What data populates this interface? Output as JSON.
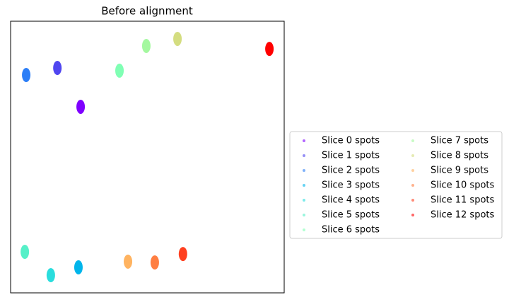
{
  "chart_data": {
    "type": "scatter",
    "title": "Before alignment",
    "xlim": [
      0,
      100
    ],
    "ylim": [
      0,
      100
    ],
    "series": [
      {
        "name": "Slice 0 spots",
        "color": "#7f00ff",
        "x": [
          25.6
        ],
        "values": [
          68.5
        ]
      },
      {
        "name": "Slice 1 spots",
        "color": "#5046f0",
        "x": [
          17.1
        ],
        "values": [
          82.8
        ]
      },
      {
        "name": "Slice 2 spots",
        "color": "#2c7ef7",
        "x": [
          5.7
        ],
        "values": [
          80.2
        ]
      },
      {
        "name": "Slice 3 spots",
        "color": "#00b5eb",
        "x": [
          24.8
        ],
        "values": [
          9.4
        ]
      },
      {
        "name": "Slice 4 spots",
        "color": "#2adddd",
        "x": [
          14.7
        ],
        "values": [
          6.5
        ]
      },
      {
        "name": "Slice 5 spots",
        "color": "#56f0c8",
        "x": [
          5.2
        ],
        "values": [
          15.1
        ]
      },
      {
        "name": "Slice 6 spots",
        "color": "#80ffb4",
        "x": [
          39.8
        ],
        "values": [
          81.8
        ]
      },
      {
        "name": "Slice 7 spots",
        "color": "#a4f89f",
        "x": [
          49.6
        ],
        "values": [
          90.9
        ]
      },
      {
        "name": "Slice 8 spots",
        "color": "#d4dd80",
        "x": [
          61.0
        ],
        "values": [
          93.5
        ]
      },
      {
        "name": "Slice 9 spots",
        "color": "#ffb360",
        "x": [
          42.9
        ],
        "values": [
          11.5
        ]
      },
      {
        "name": "Slice 10 spots",
        "color": "#ff7e41",
        "x": [
          52.7
        ],
        "values": [
          11.2
        ]
      },
      {
        "name": "Slice 11 spots",
        "color": "#ff4020",
        "x": [
          63.0
        ],
        "values": [
          14.3
        ]
      },
      {
        "name": "Slice 12 spots",
        "color": "#ff0000",
        "x": [
          94.6
        ],
        "values": [
          89.8
        ]
      }
    ]
  }
}
